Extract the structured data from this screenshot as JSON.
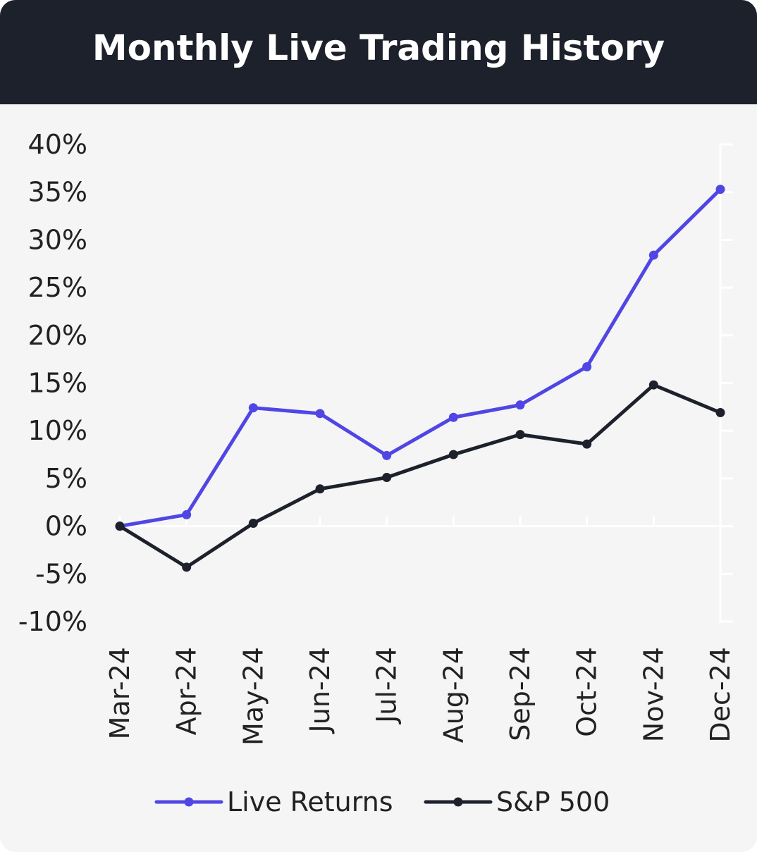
{
  "header": {
    "title": "Monthly Live Trading History"
  },
  "chart_data": {
    "type": "line",
    "title": "Monthly Live Trading History",
    "categories": [
      "Mar-24",
      "Apr-24",
      "May-24",
      "Jun-24",
      "Jul-24",
      "Aug-24",
      "Sep-24",
      "Oct-24",
      "Nov-24",
      "Dec-24"
    ],
    "series": [
      {
        "name": "Live Returns",
        "color": "#5046e5",
        "values": [
          0,
          1.2,
          12.4,
          11.8,
          7.4,
          11.4,
          12.7,
          16.7,
          28.4,
          35.3
        ]
      },
      {
        "name": "S&P 500",
        "color": "#1d212b",
        "values": [
          0,
          -4.3,
          0.3,
          3.9,
          5.1,
          7.5,
          9.6,
          8.6,
          14.8,
          11.9
        ]
      }
    ],
    "y_ticks": [
      "40%",
      "35%",
      "30%",
      "25%",
      "20%",
      "15%",
      "10%",
      "5%",
      "0%",
      "-5%",
      "-10%"
    ],
    "ylim": [
      -10,
      40
    ],
    "xlabel": "",
    "ylabel": "",
    "grid": false,
    "legend_position": "bottom-center"
  }
}
